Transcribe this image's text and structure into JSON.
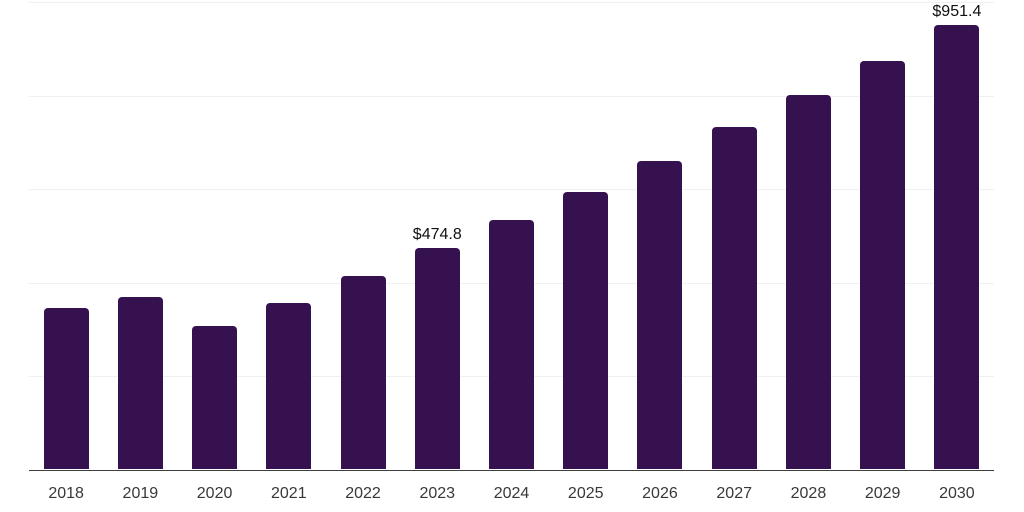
{
  "chart": {
    "bar_color": "#35124F",
    "grid_color": "#f0f0f0",
    "axis_color": "#3f3f3f",
    "value_label_color": "#111111",
    "tick_label_color": "#383838",
    "background_color": "#ffffff"
  },
  "chart_data": {
    "type": "bar",
    "title": "",
    "xlabel": "",
    "ylabel": "",
    "categories": [
      "2018",
      "2019",
      "2020",
      "2021",
      "2022",
      "2023",
      "2024",
      "2025",
      "2026",
      "2027",
      "2028",
      "2029",
      "2030"
    ],
    "values": [
      345.9,
      368.7,
      307.6,
      357.2,
      414.7,
      474.8,
      534.1,
      593.7,
      660.6,
      732.2,
      801.2,
      873.6,
      951.4
    ],
    "data_labels": {
      "2023": "$474.8",
      "2030": "$951.4"
    },
    "ylim": [
      0,
      1000
    ],
    "gridline_values": [
      0,
      200,
      400,
      600,
      800,
      1000
    ],
    "grid": "horizontal",
    "y_axis_tick_labels": "none",
    "legend_position": "none"
  }
}
